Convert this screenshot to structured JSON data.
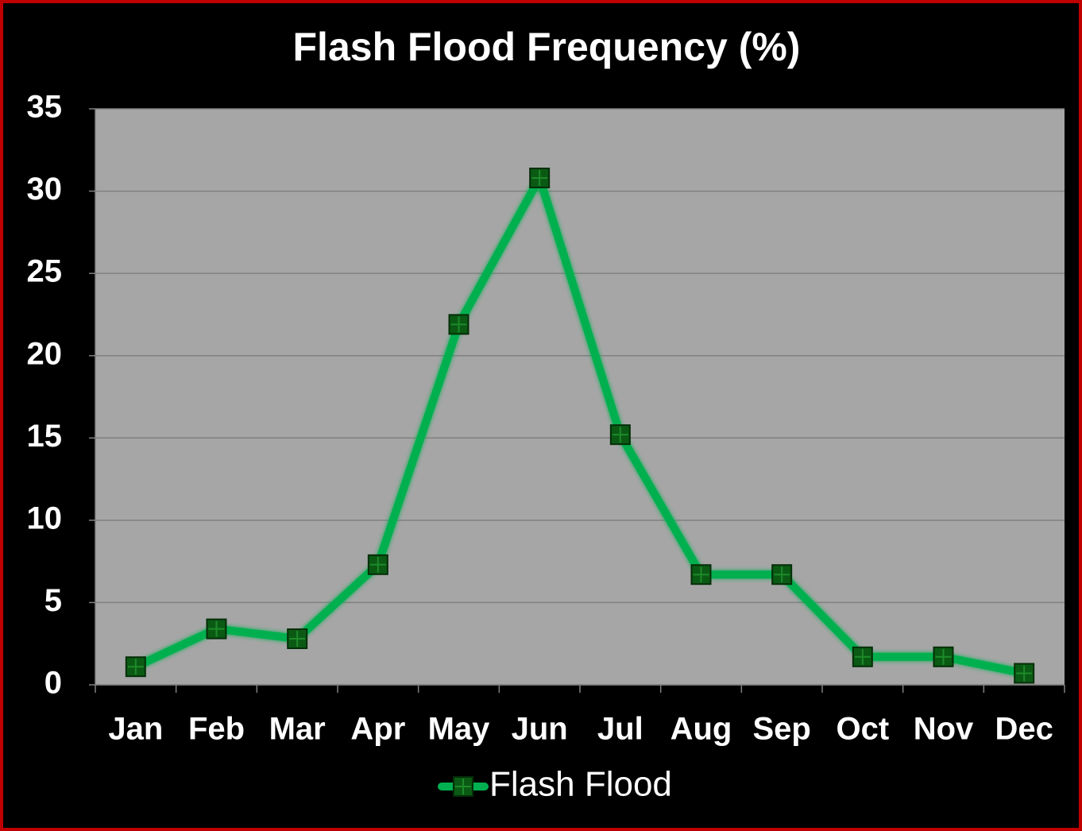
{
  "chart_data": {
    "type": "line",
    "title": "Flash Flood Frequency (%)",
    "categories": [
      "Jan",
      "Feb",
      "Mar",
      "Apr",
      "May",
      "Jun",
      "Jul",
      "Aug",
      "Sep",
      "Oct",
      "Nov",
      "Dec"
    ],
    "series": [
      {
        "name": "Flash Flood",
        "color": "#00b050",
        "values": [
          1.1,
          3.4,
          2.8,
          7.3,
          21.9,
          30.8,
          15.2,
          6.7,
          6.7,
          1.7,
          1.7,
          0.7
        ]
      }
    ],
    "ylim": [
      0,
      35
    ],
    "yticks": [
      0,
      5,
      10,
      15,
      20,
      25,
      30,
      35
    ],
    "grid": true,
    "legend": "bottom"
  }
}
